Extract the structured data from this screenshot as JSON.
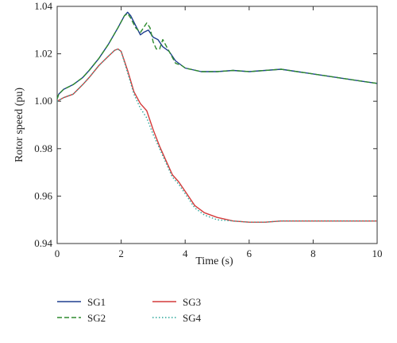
{
  "chart_data": {
    "type": "line",
    "title": "",
    "xlabel": "Time (s)",
    "ylabel": "Rotor speed (pu)",
    "xlim": [
      0,
      10
    ],
    "ylim": [
      0.94,
      1.04
    ],
    "xticks": [
      "0",
      "2",
      "4",
      "6",
      "8",
      "10"
    ],
    "yticks": [
      "0.94",
      "0.96",
      "0.98",
      "1.00",
      "1.02",
      "1.04"
    ],
    "grid": false,
    "legend_position": "below",
    "series": [
      {
        "name": "SG1",
        "color": "#1f3f8f",
        "dash": "solid",
        "x": [
          0,
          0.05,
          0.2,
          0.5,
          0.8,
          1.0,
          1.3,
          1.6,
          1.9,
          2.1,
          2.2,
          2.3,
          2.45,
          2.6,
          2.7,
          2.85,
          3.0,
          3.15,
          3.3,
          3.5,
          3.7,
          3.9,
          4.0,
          4.5,
          5.0,
          5.5,
          6.0,
          6.5,
          7.0,
          7.5,
          8.0,
          8.5,
          9.0,
          9.5,
          10.0
        ],
        "y": [
          1.001,
          1.003,
          1.005,
          1.007,
          1.01,
          1.013,
          1.018,
          1.024,
          1.031,
          1.036,
          1.0375,
          1.036,
          1.032,
          1.028,
          1.029,
          1.03,
          1.027,
          1.026,
          1.023,
          1.021,
          1.017,
          1.015,
          1.014,
          1.0125,
          1.0125,
          1.013,
          1.0125,
          1.013,
          1.0135,
          1.0125,
          1.0115,
          1.0105,
          1.0095,
          1.0085,
          1.0075
        ]
      },
      {
        "name": "SG2",
        "color": "#2e8b2e",
        "dash": "dashed",
        "x": [
          0,
          0.05,
          0.2,
          0.5,
          0.8,
          1.0,
          1.3,
          1.6,
          1.9,
          2.1,
          2.2,
          2.3,
          2.45,
          2.6,
          2.7,
          2.8,
          2.9,
          3.0,
          3.1,
          3.2,
          3.3,
          3.5,
          3.7,
          3.9,
          4.0,
          4.5,
          5.0,
          5.5,
          6.0,
          6.5,
          7.0,
          7.5,
          8.0,
          8.5,
          9.0,
          9.5,
          10.0
        ],
        "y": [
          1.001,
          1.003,
          1.005,
          1.007,
          1.01,
          1.013,
          1.018,
          1.024,
          1.031,
          1.036,
          1.037,
          1.035,
          1.031,
          1.029,
          1.031,
          1.033,
          1.031,
          1.025,
          1.022,
          1.022,
          1.026,
          1.021,
          1.016,
          1.015,
          1.014,
          1.0125,
          1.0125,
          1.013,
          1.0125,
          1.013,
          1.0135,
          1.0125,
          1.0115,
          1.0105,
          1.0095,
          1.0085,
          1.0075
        ]
      },
      {
        "name": "SG3",
        "color": "#d43a3a",
        "dash": "solid",
        "x": [
          0,
          0.2,
          0.5,
          0.8,
          1.0,
          1.3,
          1.6,
          1.8,
          1.9,
          2.0,
          2.2,
          2.4,
          2.6,
          2.8,
          3.0,
          3.2,
          3.4,
          3.6,
          3.8,
          4.0,
          4.3,
          4.6,
          5.0,
          5.5,
          6.0,
          6.5,
          7.0,
          8.0,
          9.0,
          10.0
        ],
        "y": [
          1.0,
          1.0015,
          1.003,
          1.007,
          1.01,
          1.015,
          1.019,
          1.0215,
          1.022,
          1.021,
          1.013,
          1.004,
          0.999,
          0.996,
          0.988,
          0.981,
          0.975,
          0.969,
          0.966,
          0.962,
          0.956,
          0.953,
          0.951,
          0.9495,
          0.949,
          0.949,
          0.9495,
          0.9495,
          0.9495,
          0.9495
        ]
      },
      {
        "name": "SG4",
        "color": "#2aa69a",
        "dash": "dotted",
        "x": [
          0,
          0.2,
          0.5,
          0.8,
          1.0,
          1.3,
          1.6,
          1.8,
          1.9,
          2.0,
          2.2,
          2.4,
          2.6,
          2.8,
          3.0,
          3.2,
          3.4,
          3.6,
          3.8,
          4.0,
          4.3,
          4.6,
          5.0,
          5.5,
          6.0,
          6.5,
          7.0,
          8.0,
          9.0,
          10.0
        ],
        "y": [
          1.0,
          1.0015,
          1.003,
          1.007,
          1.01,
          1.015,
          1.019,
          1.0215,
          1.022,
          1.021,
          1.012,
          1.003,
          0.997,
          0.993,
          0.986,
          0.98,
          0.974,
          0.968,
          0.965,
          0.961,
          0.955,
          0.952,
          0.95,
          0.9495,
          0.949,
          0.949,
          0.9495,
          0.9495,
          0.9495,
          0.9495
        ]
      }
    ]
  }
}
